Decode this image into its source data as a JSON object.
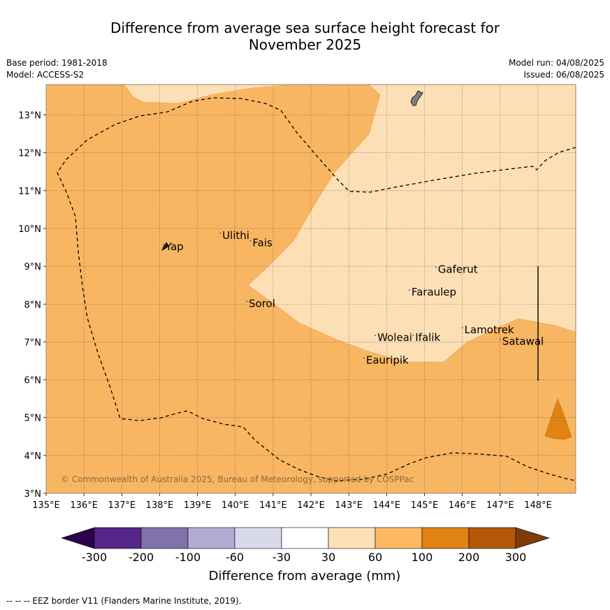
{
  "title_line1": "Difference from average sea surface height forecast for",
  "title_line2": "November 2025",
  "meta_left": [
    "Base period: 1981-2018",
    "Model: ACCESS-S2"
  ],
  "meta_right": [
    "Model run: 04/08/2025",
    "Issued: 06/08/2025"
  ],
  "copyright": "© Commonwealth of Australia 2025, Bureau of Meteorology, supported by COSPPac",
  "footer": "-- -- -- EEZ border V11 (Flanders Marine Institute, 2019).",
  "x_ticks": [
    "135°E",
    "136°E",
    "137°E",
    "138°E",
    "139°E",
    "140°E",
    "141°E",
    "142°E",
    "143°E",
    "144°E",
    "145°E",
    "146°E",
    "147°E",
    "148°E"
  ],
  "y_ticks": [
    "3°N",
    "4°N",
    "5°N",
    "6°N",
    "7°N",
    "8°N",
    "9°N",
    "10°N",
    "11°N",
    "12°N",
    "13°N"
  ],
  "places": [
    {
      "name": "Yap",
      "lon": 138.1,
      "lat": 9.5
    },
    {
      "name": "Ulithi",
      "lon": 139.6,
      "lat": 9.8
    },
    {
      "name": "Fais",
      "lon": 140.4,
      "lat": 9.6
    },
    {
      "name": "Sorol",
      "lon": 140.3,
      "lat": 8.0
    },
    {
      "name": "Gaferut",
      "lon": 145.3,
      "lat": 8.9
    },
    {
      "name": "Faraulep",
      "lon": 144.6,
      "lat": 8.3
    },
    {
      "name": "Woleai",
      "lon": 143.7,
      "lat": 7.1
    },
    {
      "name": "Ifalik",
      "lon": 144.7,
      "lat": 7.1
    },
    {
      "name": "Lamotrek",
      "lon": 146.0,
      "lat": 7.3
    },
    {
      "name": "Satawal",
      "lon": 147.0,
      "lat": 7.0
    },
    {
      "name": "Eauripik",
      "lon": 143.4,
      "lat": 6.5
    }
  ],
  "colorbar": {
    "ticks": [
      "-300",
      "-200",
      "-100",
      "-60",
      "-30",
      "30",
      "60",
      "100",
      "200",
      "300"
    ],
    "colors": [
      "#2d004b",
      "#542788",
      "#8073ac",
      "#b2abd2",
      "#d8daeb",
      "#ffffff",
      "#fee0b6",
      "#fdb863",
      "#e08214",
      "#b35806",
      "#7f3b08"
    ],
    "label": "Difference from average (mm)"
  },
  "map_colors": {
    "band_30_60": "#fddfb5",
    "band_60_100": "#f9b662",
    "band_100_200": "#e08214",
    "land": "#808080"
  }
}
